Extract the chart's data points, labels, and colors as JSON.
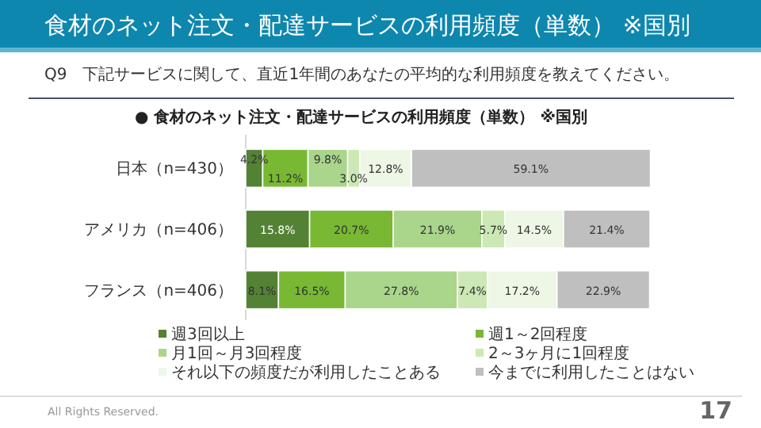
{
  "chart_data": {
    "type": "bar",
    "orientation": "horizontal",
    "stacked": true,
    "title": "食材のネット注文・配達サービスの利用頻度（単数） ※国別",
    "subtitle": "Q9　下記サービスに関して、直近1年間のあなたの平均的な利用頻度を教えてください。",
    "annotations": [
      "●  食材のネット注文・配達サービスの利用頻度（単数） ※国別",
      "All Rights Reserved.",
      "17"
    ],
    "categories": [
      "日本（n=430）",
      "アメリカ（n=406）",
      "フランス（n=406）"
    ],
    "xlim": [
      0,
      100
    ],
    "legend": "bottom",
    "series": [
      {
        "name": "週3回以上",
        "color": "#548235",
        "values": [
          4.2,
          15.8,
          8.1
        ],
        "value_labels": [
          "4.2%",
          "15.8%",
          "8.1%"
        ]
      },
      {
        "name": "週1～2回程度",
        "color": "#78b833",
        "values": [
          11.2,
          20.7,
          16.5
        ],
        "value_labels": [
          "11.2%",
          "20.7%",
          "16.5%"
        ]
      },
      {
        "name": "月1回～月3回程度",
        "color": "#a9d68a",
        "values": [
          9.8,
          21.9,
          27.8
        ],
        "value_labels": [
          "9.8%",
          "21.9%",
          "27.8%"
        ]
      },
      {
        "name": "2～3ヶ月に1回程度",
        "color": "#cce8b5",
        "values": [
          3.0,
          5.7,
          7.4
        ],
        "value_labels": [
          "3.0%",
          "5.7%",
          "7.4%"
        ]
      },
      {
        "name": "それ以下の頻度だが利用したことある",
        "color": "#eef7e6",
        "values": [
          12.8,
          14.5,
          17.2
        ],
        "value_labels": [
          "12.8%",
          "14.5%",
          "17.2%"
        ]
      },
      {
        "name": "今までに利用したことはない",
        "color": "#bfbfbf",
        "values": [
          59.1,
          21.4,
          22.9
        ],
        "value_labels": [
          "59.1%",
          "21.4%",
          "22.9%"
        ]
      }
    ]
  }
}
